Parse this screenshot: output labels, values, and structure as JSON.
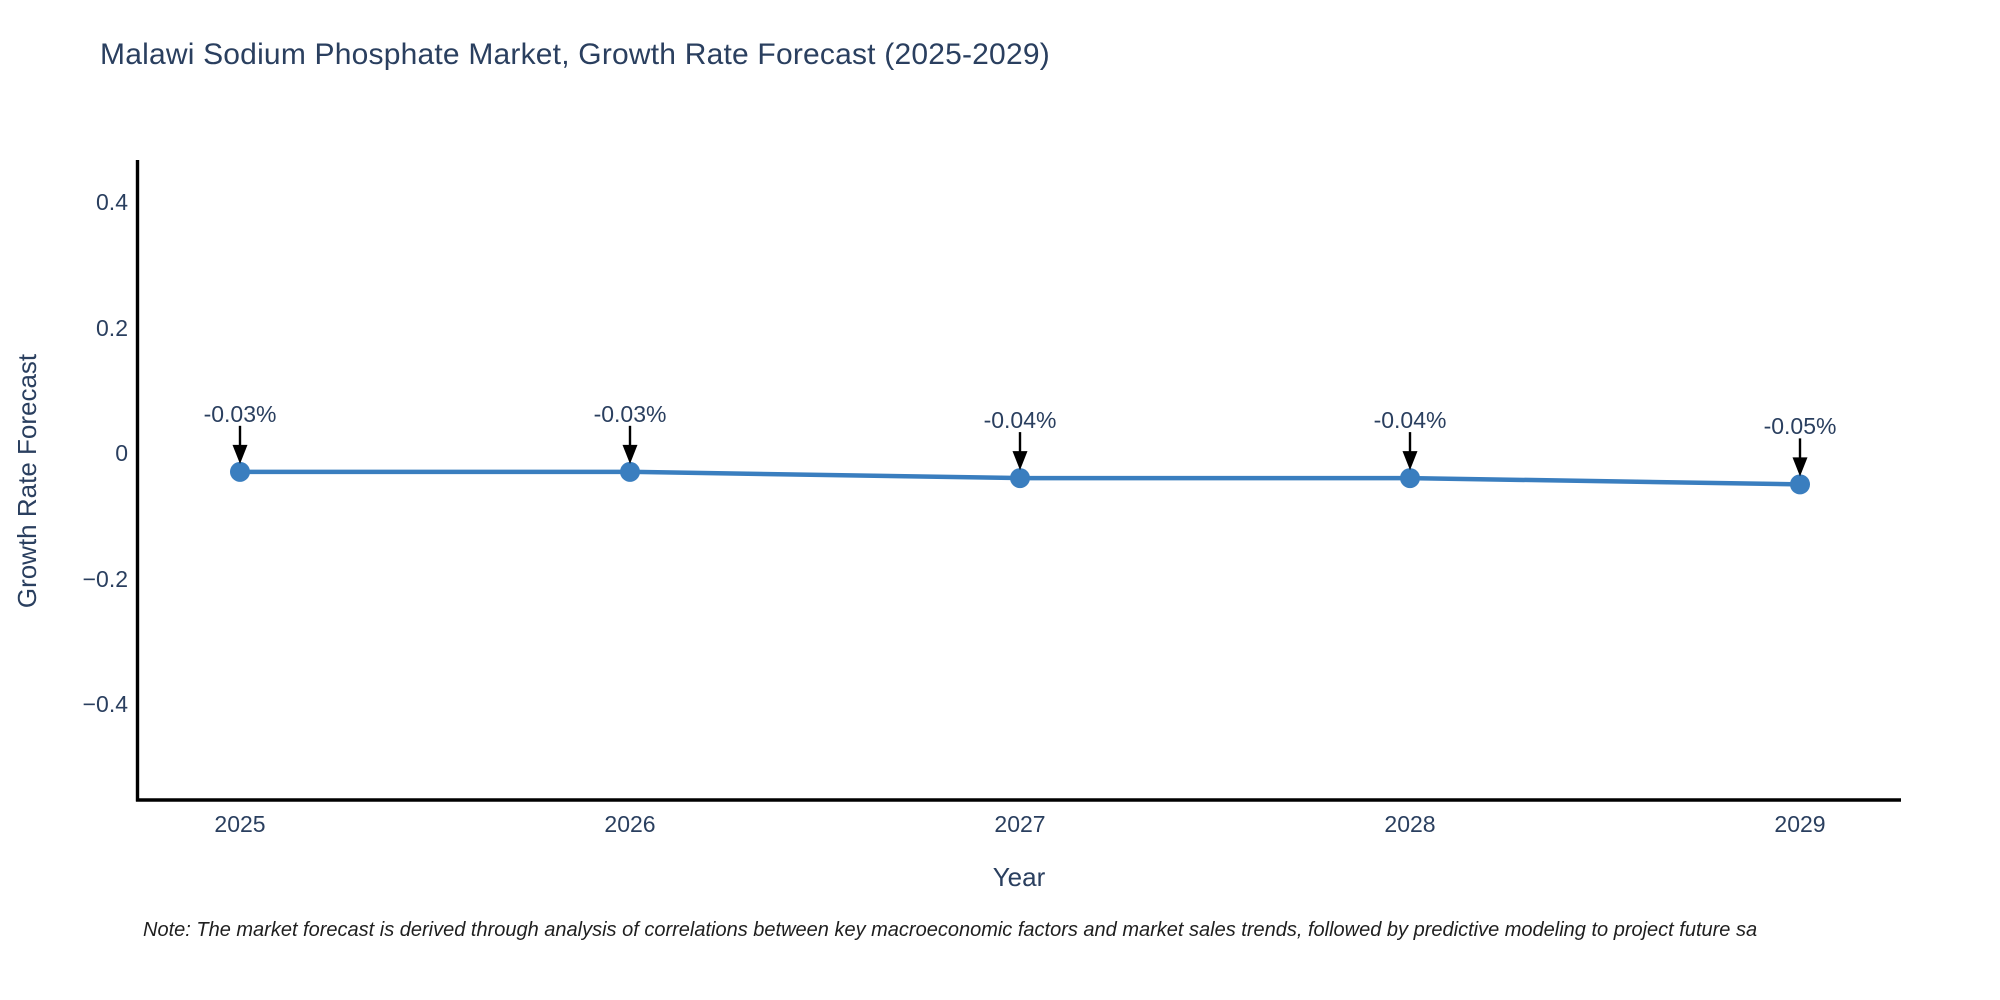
{
  "page": {
    "note": "Note: The market forecast is derived through analysis of correlations between key macroeconomic factors and market sales trends, followed by predictive modeling to project future sa"
  },
  "chart_data": {
    "type": "line",
    "title": "Malawi Sodium Phosphate Market, Growth Rate Forecast (2025-2029)",
    "xlabel": "Year",
    "ylabel": "Growth Rate Forecast",
    "x": [
      2025,
      2026,
      2027,
      2028,
      2029
    ],
    "values": [
      -0.03,
      -0.03,
      -0.04,
      -0.04,
      -0.05
    ],
    "point_labels": [
      "-0.03%",
      "-0.03%",
      "-0.04%",
      "-0.04%",
      "-0.05%"
    ],
    "xtick_labels": [
      "2025",
      "2026",
      "2027",
      "2028",
      "2029"
    ],
    "ytick_labels": [
      "0.4",
      "0.2",
      "0",
      "−0.2",
      "−0.4"
    ],
    "ytick_values": [
      0.4,
      0.2,
      0,
      -0.2,
      -0.4
    ],
    "ylim": [
      -0.55,
      0.47
    ],
    "xlim": [
      2024.73,
      2029.26
    ],
    "grid": false,
    "legend": false,
    "line_color": "#3a7ebf",
    "marker_color": "#3a7ebf",
    "arrow_color": "#000000",
    "axis_color": "#000000",
    "text_color": "#2a3f5f",
    "note_color": "#1f1f1f"
  }
}
